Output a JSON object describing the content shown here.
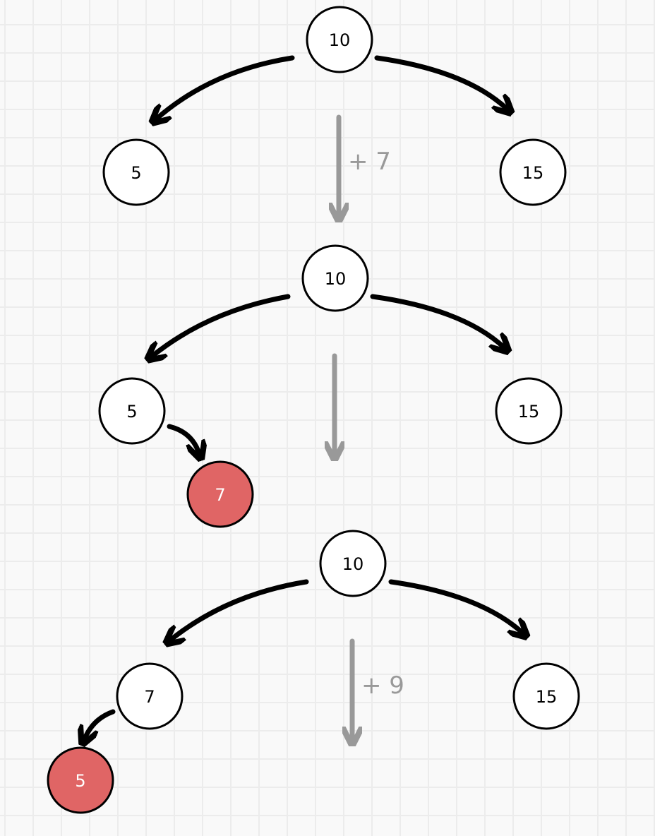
{
  "colors": {
    "edge": "#000000",
    "step_arrow": "#999999",
    "node_fill": "#ffffff",
    "highlight_fill": "#e06565",
    "node_stroke": "#000000"
  },
  "trees": [
    {
      "root": "10",
      "left": "5",
      "right": "15"
    },
    {
      "root": "10",
      "left": "5",
      "right": "15",
      "new_node": "7"
    },
    {
      "root": "10",
      "left": "7",
      "right": "15",
      "new_node": "5"
    }
  ],
  "steps": [
    {
      "label": "+ 7"
    },
    {
      "label": ""
    },
    {
      "label": "+ 9"
    }
  ]
}
